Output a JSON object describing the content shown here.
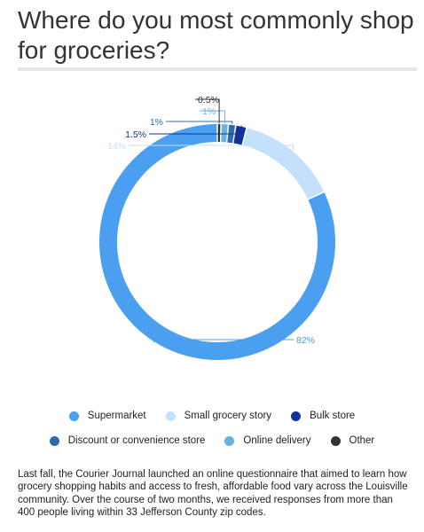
{
  "header": {
    "title": "Where do you most commonly shop for groceries?"
  },
  "chart_data": {
    "type": "pie",
    "donut": true,
    "categories": [
      "Supermarket",
      "Small grocery story",
      "Bulk store",
      "Discount or convenience store",
      "Online delivery",
      "Other"
    ],
    "values": [
      82,
      14,
      1.5,
      1,
      1,
      0.5
    ],
    "labels": [
      "82%",
      "14%",
      "1.5%",
      "1%",
      "1%",
      "0.5%"
    ],
    "colors": [
      "#4a9ff0",
      "#c5e0fb",
      "#12329a",
      "#2b6cab",
      "#6bb0e2",
      "#333333"
    ],
    "legend_position": "bottom"
  },
  "footer": {
    "text": "Last fall, the Courier Journal launched an online questionnaire that aimed to learn how grocery shopping habits and access to fresh, affordable food vary across the Louisville community. Over the course of two months, we received responses from more than 400 people living within 33 Jefferson County zip codes."
  }
}
